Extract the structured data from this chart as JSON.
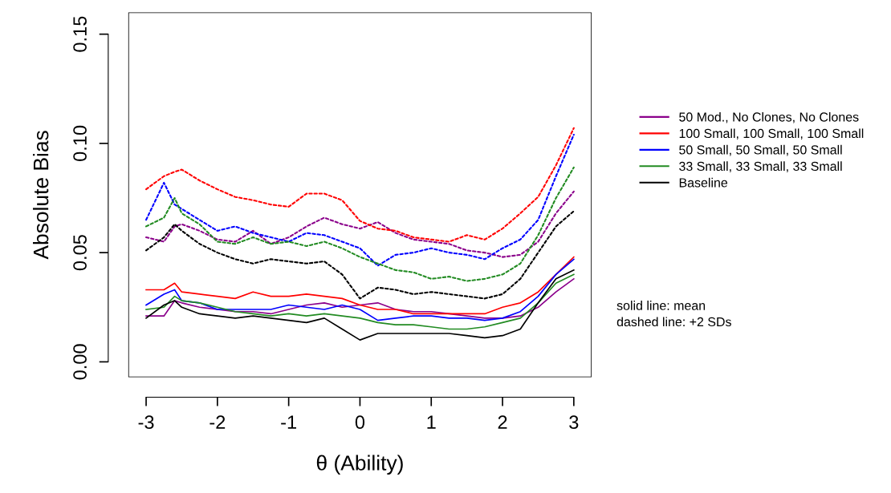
{
  "chart_data": {
    "type": "line",
    "xlabel": "θ (Ability)",
    "ylabel": "Absolute Bias",
    "x": [
      -3,
      -2.75,
      -2.6,
      -2.5,
      -2.25,
      -2,
      -1.75,
      -1.5,
      -1.25,
      -1,
      -0.75,
      -0.5,
      -0.25,
      0,
      0.25,
      0.5,
      0.75,
      1,
      1.25,
      1.5,
      1.75,
      2,
      2.25,
      2.5,
      2.75,
      3
    ],
    "xlim": [
      -3.25,
      3.25
    ],
    "xticks": [
      -3,
      -2,
      -1,
      0,
      1,
      2,
      3
    ],
    "ylim": [
      -0.007,
      0.16
    ],
    "yticks": [
      {
        "value": 0,
        "label": "0.00"
      },
      {
        "value": 0.05,
        "label": "0.05"
      },
      {
        "value": 0.1,
        "label": "0.10"
      },
      {
        "value": 0.15,
        "label": "0.15"
      }
    ],
    "grid": false,
    "legend": "right",
    "marker": "none",
    "annotations": [
      "solid line: mean",
      "dashed line: +2 SDs"
    ],
    "series": [
      {
        "name": "50 Mod., No Clones, No Clones",
        "color": "#8b008b",
        "line_style": "solid",
        "values": [
          0.021,
          0.021,
          0.028,
          0.027,
          0.025,
          0.024,
          0.023,
          0.023,
          0.022,
          0.024,
          0.026,
          0.027,
          0.025,
          0.026,
          0.027,
          0.024,
          0.023,
          0.023,
          0.022,
          0.021,
          0.02,
          0.02,
          0.021,
          0.025,
          0.032,
          0.038
        ]
      },
      {
        "name": "100 Small, 100 Small, 100 Small",
        "color": "#ff0000",
        "line_style": "solid",
        "values": [
          0.033,
          0.033,
          0.036,
          0.032,
          0.031,
          0.03,
          0.029,
          0.032,
          0.03,
          0.03,
          0.031,
          0.03,
          0.029,
          0.026,
          0.024,
          0.024,
          0.022,
          0.022,
          0.022,
          0.022,
          0.022,
          0.025,
          0.027,
          0.032,
          0.04,
          0.048
        ]
      },
      {
        "name": "50 Small, 50 Small, 50 Small",
        "color": "#0000ff",
        "line_style": "solid",
        "values": [
          0.026,
          0.031,
          0.033,
          0.028,
          0.027,
          0.024,
          0.024,
          0.024,
          0.024,
          0.026,
          0.025,
          0.024,
          0.026,
          0.024,
          0.019,
          0.02,
          0.021,
          0.021,
          0.02,
          0.02,
          0.019,
          0.02,
          0.023,
          0.03,
          0.04,
          0.047
        ]
      },
      {
        "name": "33 Small, 33 Small, 33 Small",
        "color": "#228b22",
        "line_style": "solid",
        "values": [
          0.024,
          0.025,
          0.03,
          0.028,
          0.027,
          0.025,
          0.023,
          0.022,
          0.021,
          0.022,
          0.021,
          0.022,
          0.021,
          0.02,
          0.018,
          0.017,
          0.017,
          0.016,
          0.015,
          0.015,
          0.016,
          0.018,
          0.02,
          0.027,
          0.036,
          0.04
        ]
      },
      {
        "name": "Baseline",
        "color": "#000000",
        "line_style": "solid",
        "values": [
          0.02,
          0.026,
          0.028,
          0.025,
          0.022,
          0.021,
          0.02,
          0.021,
          0.02,
          0.019,
          0.018,
          0.02,
          0.015,
          0.01,
          0.013,
          0.013,
          0.013,
          0.013,
          0.013,
          0.012,
          0.011,
          0.012,
          0.015,
          0.027,
          0.038,
          0.042
        ]
      },
      {
        "color": "#8b008b",
        "line_style": "dotted",
        "values": [
          0.057,
          0.055,
          0.062,
          0.063,
          0.06,
          0.056,
          0.055,
          0.06,
          0.054,
          0.057,
          0.062,
          0.066,
          0.063,
          0.061,
          0.064,
          0.059,
          0.056,
          0.055,
          0.054,
          0.051,
          0.05,
          0.048,
          0.049,
          0.055,
          0.068,
          0.078
        ]
      },
      {
        "color": "#ff0000",
        "line_style": "dotted",
        "values": [
          0.079,
          0.085,
          0.087,
          0.088,
          0.083,
          0.079,
          0.0755,
          0.074,
          0.072,
          0.071,
          0.077,
          0.077,
          0.074,
          0.0645,
          0.061,
          0.06,
          0.057,
          0.056,
          0.055,
          0.058,
          0.056,
          0.061,
          0.068,
          0.0755,
          0.09,
          0.107
        ]
      },
      {
        "color": "#0000ff",
        "line_style": "dotted",
        "values": [
          0.065,
          0.082,
          0.072,
          0.07,
          0.065,
          0.06,
          0.062,
          0.059,
          0.057,
          0.055,
          0.059,
          0.058,
          0.055,
          0.052,
          0.044,
          0.049,
          0.05,
          0.052,
          0.05,
          0.049,
          0.047,
          0.052,
          0.056,
          0.065,
          0.085,
          0.104
        ]
      },
      {
        "color": "#228b22",
        "line_style": "dotted",
        "values": [
          0.062,
          0.066,
          0.075,
          0.068,
          0.063,
          0.055,
          0.054,
          0.057,
          0.054,
          0.055,
          0.053,
          0.055,
          0.052,
          0.048,
          0.045,
          0.042,
          0.041,
          0.038,
          0.039,
          0.037,
          0.038,
          0.04,
          0.045,
          0.058,
          0.075,
          0.089
        ]
      },
      {
        "color": "#000000",
        "line_style": "dotted",
        "values": [
          0.051,
          0.057,
          0.063,
          0.06,
          0.054,
          0.05,
          0.047,
          0.045,
          0.047,
          0.046,
          0.045,
          0.046,
          0.04,
          0.029,
          0.034,
          0.033,
          0.031,
          0.032,
          0.031,
          0.03,
          0.029,
          0.031,
          0.038,
          0.05,
          0.062,
          0.069
        ]
      }
    ]
  }
}
